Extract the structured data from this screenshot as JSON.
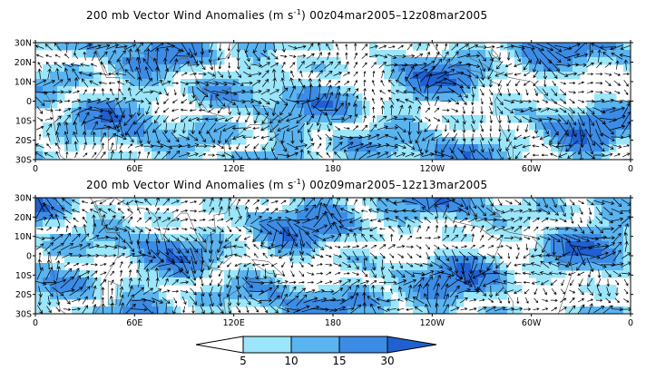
{
  "colors": {
    "level_0": "#ffffff",
    "level_5": "#9be6fa",
    "level_10": "#5ab4f0",
    "level_15": "#3c8ce6",
    "level_30": "#2060d0",
    "coast": "#555555",
    "arrow": "#000000"
  },
  "panels": [
    {
      "title": "200 mb Vector Wind Anomalies (m s",
      "title_superscript": "-1",
      "title_suffix": ") 00z04mar2005–12z08mar2005",
      "seed": 7
    },
    {
      "title": "200 mb Vector Wind Anomalies (m s",
      "title_superscript": "-1",
      "title_suffix": ") 00z09mar2005–12z13mar2005",
      "seed": 23
    }
  ],
  "axes": {
    "y_labels": [
      "30N",
      "20N",
      "10N",
      "0",
      "10S",
      "20S",
      "30S"
    ],
    "x_labels": [
      "0",
      "60E",
      "120E",
      "180",
      "120W",
      "60W",
      "0"
    ]
  },
  "colorbar": {
    "labels": [
      "5",
      "10",
      "15",
      "30"
    ],
    "levels": [
      5,
      10,
      15,
      30
    ]
  }
}
